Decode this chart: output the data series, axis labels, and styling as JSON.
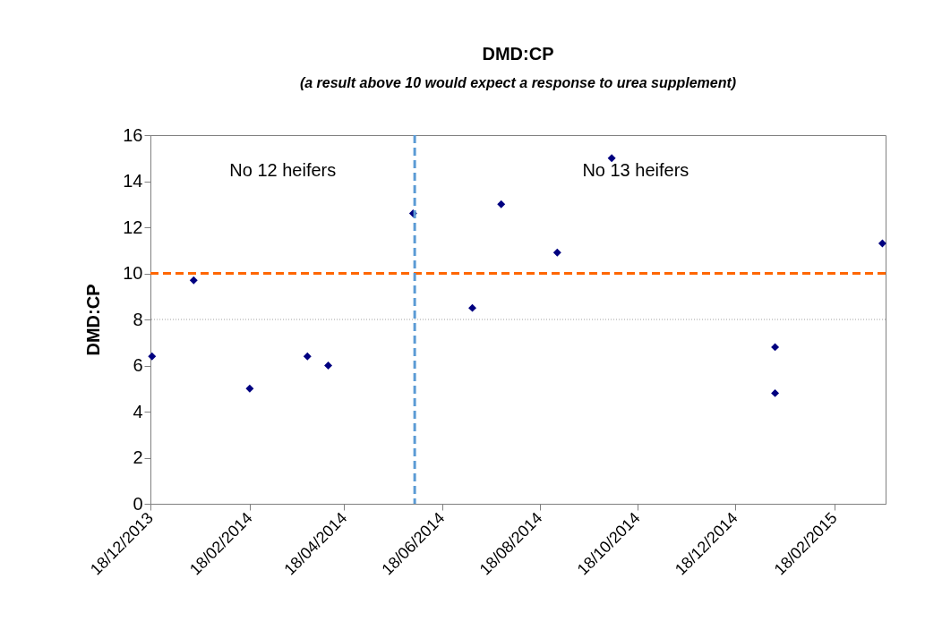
{
  "chart_data": {
    "type": "scatter",
    "title": "DMD:CP",
    "subtitle": "(a result above 10 would expect a response to urea supplement)",
    "ylabel": "DMD:CP",
    "x": [
      "2013-12-19",
      "2014-01-14",
      "2014-02-18",
      "2014-03-26",
      "2014-04-08",
      "2014-05-31",
      "2014-07-07",
      "2014-07-25",
      "2014-08-29",
      "2014-10-02",
      "2015-01-12",
      "2015-01-12",
      "2015-03-20"
    ],
    "series": [
      {
        "color": "#000080",
        "values": [
          6.4,
          9.7,
          5.0,
          6.4,
          6.0,
          12.6,
          8.5,
          13.0,
          10.9,
          15.0,
          6.8,
          4.8,
          11.3
        ]
      }
    ],
    "xlim": [
      "2013-12-18",
      "2015-03-22"
    ],
    "xticks": [
      {
        "value": "2013-12-18",
        "label": "18/12/2013"
      },
      {
        "value": "2014-02-18",
        "label": "18/02/2014"
      },
      {
        "value": "2014-04-18",
        "label": "18/04/2014"
      },
      {
        "value": "2014-06-18",
        "label": "18/06/2014"
      },
      {
        "value": "2014-08-18",
        "label": "18/08/2014"
      },
      {
        "value": "2014-10-18",
        "label": "18/10/2014"
      },
      {
        "value": "2014-12-18",
        "label": "18/12/2014"
      },
      {
        "value": "2015-02-18",
        "label": "18/02/2015"
      }
    ],
    "ylim": [
      0,
      16
    ],
    "yticks": [
      0,
      2,
      4,
      6,
      8,
      10,
      12,
      14,
      16
    ],
    "ref_lines": [
      {
        "axis": "y",
        "value": 10,
        "color": "#ff6600",
        "line_style": "dashed"
      },
      {
        "axis": "y",
        "value": 8,
        "color": "#a0a0a0",
        "line_style": "dotted"
      },
      {
        "axis": "x",
        "value": "2014-06-01",
        "color": "#5b9bd5",
        "line_style": "dashed"
      }
    ],
    "annotations": [
      "No 12 heifers",
      "No 13 heifers"
    ],
    "marker": "diamond",
    "legend": false,
    "grid": false
  }
}
